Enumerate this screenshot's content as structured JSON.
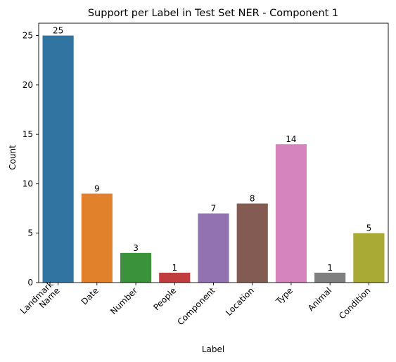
{
  "chart_data": {
    "type": "bar",
    "title": "Support per Label in Test Set NER - Component 1",
    "xlabel": "Label",
    "ylabel": "Count",
    "categories": [
      "Landmark\nName",
      "Date",
      "Number",
      "People",
      "Component",
      "Location",
      "Type",
      "Animal",
      "Condition"
    ],
    "values": [
      25,
      9,
      3,
      1,
      7,
      8,
      14,
      1,
      5
    ],
    "value_labels": [
      "25",
      "9",
      "3",
      "1",
      "7",
      "8",
      "14",
      "1",
      "5"
    ],
    "colors": [
      "#3274a1",
      "#e1812c",
      "#3a923a",
      "#c03d3e",
      "#9372b2",
      "#845b53",
      "#d684bd",
      "#7f7f7f",
      "#a9aa35"
    ],
    "yticks": [
      0,
      5,
      10,
      15,
      20,
      25
    ],
    "ylim": [
      0,
      26.25
    ],
    "grid": false,
    "legend": "none"
  }
}
